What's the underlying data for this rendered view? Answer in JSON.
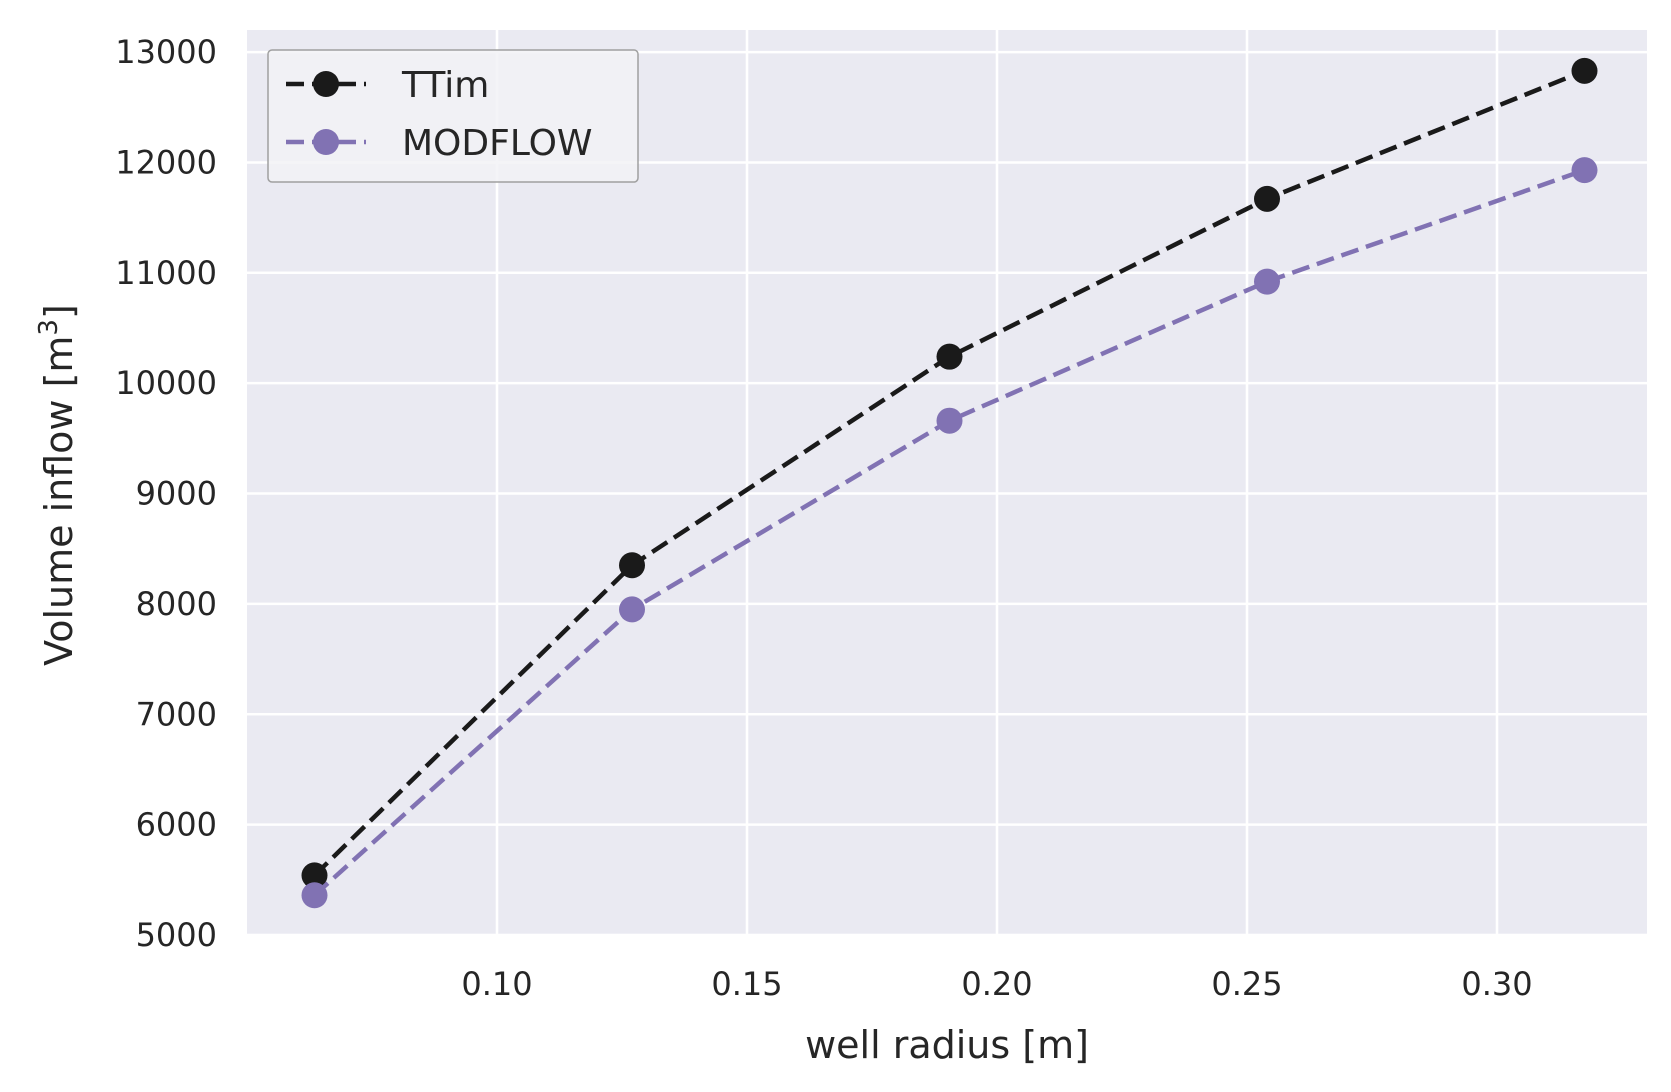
{
  "chart_data": {
    "type": "line",
    "title": "",
    "xlabel": "well radius [m]",
    "ylabel": {
      "text": "Volume inflow [m",
      "superscript": "3",
      "suffix": "]"
    },
    "xlim": [
      0.05,
      0.33
    ],
    "ylim": [
      5000,
      13200
    ],
    "xticks": [
      0.1,
      0.15,
      0.2,
      0.25,
      0.3
    ],
    "xtick_labels": [
      "0.10",
      "0.15",
      "0.20",
      "0.25",
      "0.30"
    ],
    "yticks": [
      5000,
      6000,
      7000,
      8000,
      9000,
      10000,
      11000,
      12000,
      13000
    ],
    "ytick_labels": [
      "5000",
      "6000",
      "7000",
      "8000",
      "9000",
      "10000",
      "11000",
      "12000",
      "13000"
    ],
    "grid": true,
    "legend_position": "upper-left",
    "x": [
      0.0635,
      0.127,
      0.1905,
      0.254,
      0.3175
    ],
    "series": [
      {
        "name": "TTim",
        "values": [
          5540,
          8350,
          10240,
          11670,
          12830
        ],
        "color": "#1a1a1a",
        "line_style": "dashed",
        "marker": "circle"
      },
      {
        "name": "MODFLOW",
        "values": [
          5360,
          7950,
          9660,
          10920,
          11930
        ],
        "color": "#8172b3",
        "line_style": "dashed",
        "marker": "circle"
      }
    ],
    "colors": {
      "plot_background": "#eaeaf2",
      "grid": "#ffffff",
      "text": "#262626",
      "legend_border": "#a0a0a0"
    }
  }
}
